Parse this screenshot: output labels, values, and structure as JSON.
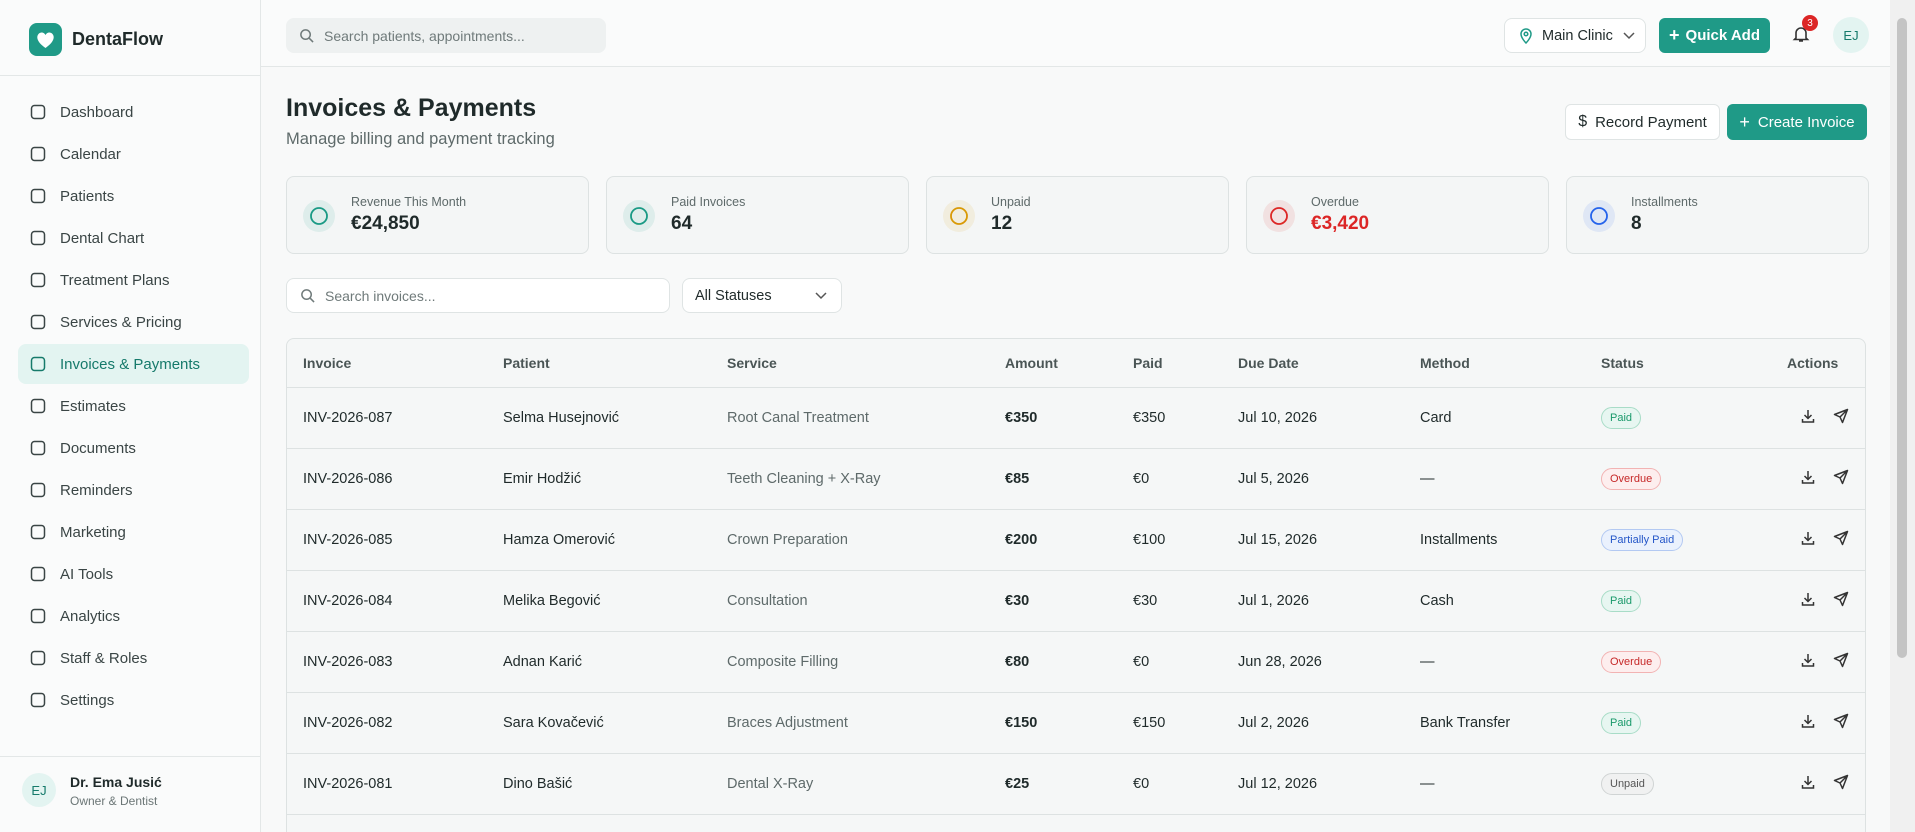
{
  "sidebar": {
    "brand": "DentaFlow",
    "nav": [
      {
        "label": "Dashboard"
      },
      {
        "label": "Calendar"
      },
      {
        "label": "Patients"
      },
      {
        "label": "Dental Chart"
      },
      {
        "label": "Treatment Plans"
      },
      {
        "label": "Services & Pricing"
      },
      {
        "label": "Invoices & Payments",
        "active": true
      },
      {
        "label": "Estimates"
      },
      {
        "label": "Documents"
      },
      {
        "label": "Reminders"
      },
      {
        "label": "Marketing"
      },
      {
        "label": "AI Tools"
      },
      {
        "label": "Analytics"
      },
      {
        "label": "Staff & Roles"
      },
      {
        "label": "Settings"
      }
    ],
    "user": {
      "initials": "EJ",
      "name": "Dr. Ema Jusić",
      "role": "Owner & Dentist"
    }
  },
  "topbar": {
    "search_placeholder": "Search patients, appointments...",
    "clinic": "Main Clinic",
    "quick_add": "Quick Add",
    "notifications": "3",
    "avatar": "EJ"
  },
  "header": {
    "title": "Invoices & Payments",
    "subtitle": "Manage billing and payment tracking",
    "record_payment": "Record Payment",
    "create_invoice": "Create Invoice"
  },
  "stats": [
    {
      "label": "Revenue This Month",
      "value": "€24,850",
      "color": "#1a9a85"
    },
    {
      "label": "Paid Invoices",
      "value": "64",
      "color": "#1a9a85"
    },
    {
      "label": "Unpaid",
      "value": "12",
      "color": "#d99a06"
    },
    {
      "label": "Overdue",
      "value": "€3,420",
      "color": "#dc2626"
    },
    {
      "label": "Installments",
      "value": "8",
      "color": "#2563eb"
    }
  ],
  "filters": {
    "search_placeholder": "Search invoices...",
    "status": "All Statuses"
  },
  "table": {
    "columns": [
      "Invoice",
      "Patient",
      "Service",
      "Amount",
      "Paid",
      "Due Date",
      "Method",
      "Status",
      "Actions"
    ],
    "rows": [
      [
        "INV-2026-087",
        "Selma Husejnović",
        "Root Canal Treatment",
        "€350",
        "€350",
        "Jul 10, 2026",
        "Card",
        "Paid"
      ],
      [
        "INV-2026-086",
        "Emir Hodžić",
        "Teeth Cleaning + X-Ray",
        "€85",
        "€0",
        "Jul 5, 2026",
        "—",
        "Overdue"
      ],
      [
        "INV-2026-085",
        "Hamza Omerović",
        "Crown Preparation",
        "€200",
        "€100",
        "Jul 15, 2026",
        "Installments",
        "Partially Paid"
      ],
      [
        "INV-2026-084",
        "Melika Begović",
        "Consultation",
        "€30",
        "€30",
        "Jul 1, 2026",
        "Cash",
        "Paid"
      ],
      [
        "INV-2026-083",
        "Adnan Karić",
        "Composite Filling",
        "€80",
        "€0",
        "Jun 28, 2026",
        "—",
        "Overdue"
      ],
      [
        "INV-2026-082",
        "Sara Kovačević",
        "Braces Adjustment",
        "€150",
        "€150",
        "Jul 2, 2026",
        "Bank Transfer",
        "Paid"
      ],
      [
        "INV-2026-081",
        "Dino Bašić",
        "Dental X-Ray",
        "€25",
        "€0",
        "Jul 12, 2026",
        "—",
        "Unpaid"
      ]
    ]
  }
}
